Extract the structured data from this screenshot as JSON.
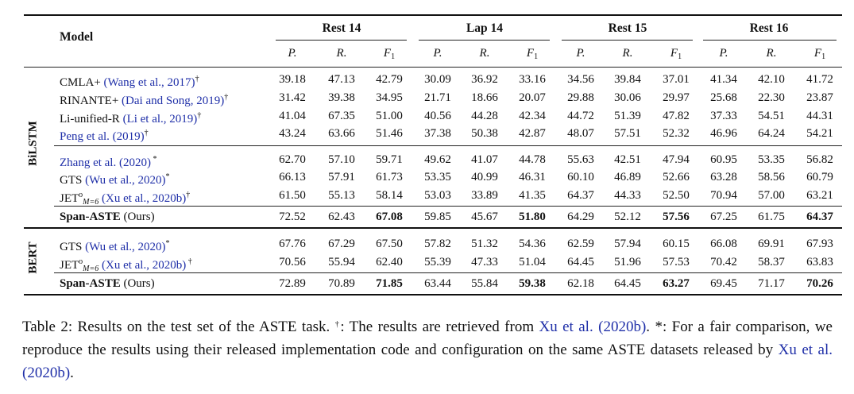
{
  "table": {
    "model_header": "Model",
    "datasets": [
      "Rest 14",
      "Lap 14",
      "Rest 15",
      "Rest 16"
    ],
    "metrics": [
      "P.",
      "R.",
      "F",
      "1"
    ],
    "groups": [
      "BiLSTM",
      "BERT"
    ],
    "rows": [
      {
        "name": "CMLA+ ",
        "cite": "(Wang et al., 2017)",
        "mark": "†",
        "v": [
          "39.18",
          "47.13",
          "42.79",
          "30.09",
          "36.92",
          "33.16",
          "34.56",
          "39.84",
          "37.01",
          "41.34",
          "42.10",
          "41.72"
        ]
      },
      {
        "name": "RINANTE+ ",
        "cite": "(Dai and Song, 2019)",
        "mark": "†",
        "v": [
          "31.42",
          "39.38",
          "34.95",
          "21.71",
          "18.66",
          "20.07",
          "29.88",
          "30.06",
          "29.97",
          "25.68",
          "22.30",
          "23.87"
        ]
      },
      {
        "name": "Li-unified-R ",
        "cite": "(Li et al., 2019)",
        "mark": "†",
        "v": [
          "41.04",
          "67.35",
          "51.00",
          "40.56",
          "44.28",
          "42.34",
          "44.72",
          "51.39",
          "47.82",
          "37.33",
          "54.51",
          "44.31"
        ]
      },
      {
        "name": "",
        "cite": "Peng et al. (2019)",
        "mark": "†",
        "v": [
          "43.24",
          "63.66",
          "51.46",
          "37.38",
          "50.38",
          "42.87",
          "48.07",
          "57.51",
          "52.32",
          "46.96",
          "64.24",
          "54.21"
        ]
      },
      {
        "name": "",
        "cite": "Zhang et al. (2020)",
        "mark": " *",
        "v": [
          "62.70",
          "57.10",
          "59.71",
          "49.62",
          "41.07",
          "44.78",
          "55.63",
          "42.51",
          "47.94",
          "60.95",
          "53.35",
          "56.82"
        ]
      },
      {
        "name": "GTS ",
        "cite": "(Wu et al., 2020)",
        "mark": "*",
        "v": [
          "66.13",
          "57.91",
          "61.73",
          "53.35",
          "40.99",
          "46.31",
          "60.10",
          "46.89",
          "52.66",
          "63.28",
          "58.56",
          "60.79"
        ]
      },
      {
        "name": "JET",
        "sup": "o",
        "sub": "M=6",
        "cite": " (Xu et al., 2020b)",
        "mark": "†",
        "v": [
          "61.50",
          "55.13",
          "58.14",
          "53.03",
          "33.89",
          "41.35",
          "64.37",
          "44.33",
          "52.50",
          "70.94",
          "57.00",
          "63.21"
        ]
      },
      {
        "name": "Span-ASTE",
        "bold": true,
        "cite": "",
        "tail": " (Ours)",
        "mark": "",
        "v": [
          "72.52",
          "62.43",
          "67.08",
          "59.85",
          "45.67",
          "51.80",
          "64.29",
          "52.12",
          "57.56",
          "67.25",
          "61.75",
          "64.37"
        ],
        "boldcols": [
          2,
          5,
          8,
          11
        ]
      },
      {
        "name": "GTS ",
        "cite": "(Wu et al., 2020)",
        "mark": "*",
        "v": [
          "67.76",
          "67.29",
          "67.50",
          "57.82",
          "51.32",
          "54.36",
          "62.59",
          "57.94",
          "60.15",
          "66.08",
          "69.91",
          "67.93"
        ]
      },
      {
        "name": "JET",
        "sup": "o",
        "sub": "M=6",
        "cite": " (Xu et al., 2020b)",
        "mark": " †",
        "v": [
          "70.56",
          "55.94",
          "62.40",
          "55.39",
          "47.33",
          "51.04",
          "64.45",
          "51.96",
          "57.53",
          "70.42",
          "58.37",
          "63.83"
        ]
      },
      {
        "name": "Span-ASTE",
        "bold": true,
        "cite": "",
        "tail": " (Ours)",
        "mark": "",
        "v": [
          "72.89",
          "70.89",
          "71.85",
          "63.44",
          "55.84",
          "59.38",
          "62.18",
          "64.45",
          "63.27",
          "69.45",
          "71.17",
          "70.26"
        ],
        "boldcols": [
          2,
          5,
          8,
          11
        ]
      }
    ]
  },
  "caption": {
    "p1": "Table 2:  Results on the test set of the ASTE task.  ",
    "dagger": "†",
    "p2": ":  The results are retrieved from ",
    "cite1": "Xu et al. (2020b)",
    "p3": ".  *:  For a fair comparison, we reproduce the results using their released implementation code and configuration on the same ASTE datasets released by ",
    "cite2": "Xu et al. (2020b)",
    "p4": "."
  }
}
